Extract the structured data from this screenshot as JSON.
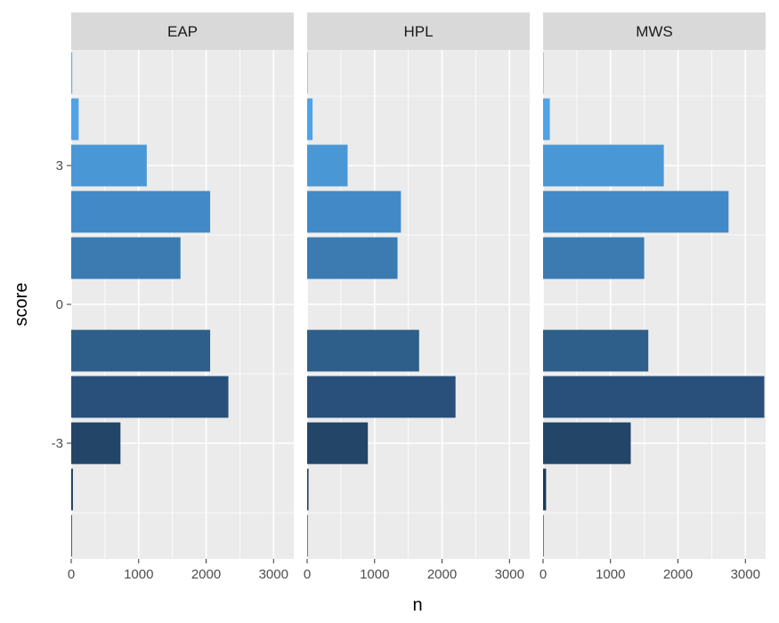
{
  "chart_data": {
    "type": "bar",
    "orientation": "horizontal",
    "facet_by": "author",
    "xlabel": "n",
    "ylabel": "score",
    "xlim": [
      0,
      3300
    ],
    "ylim": [
      -5.5,
      5.5
    ],
    "x_ticks": [
      0,
      1000,
      2000,
      3000
    ],
    "x_tick_labels": [
      "0",
      "1000",
      "2000",
      "3000"
    ],
    "y_ticks": [
      -3,
      0,
      3
    ],
    "y_tick_labels": [
      "-3",
      "0",
      "3"
    ],
    "grid": true,
    "legend": "none",
    "score_categories": [
      5,
      4,
      3,
      2,
      1,
      0,
      -1,
      -2,
      -3,
      -4,
      -5
    ],
    "fill_colors": {
      "5": "#56B1F7",
      "4": "#4FA3E6",
      "3": "#4A97D6",
      "2": "#428AC7",
      "1": "#3B7BB2",
      "-1": "#2E5F8A",
      "-2": "#28507A",
      "-3": "#234568",
      "-4": "#1E3A5A",
      "-5": "#132B43"
    },
    "facets": [
      {
        "name": "EAP",
        "scores": [
          5,
          4,
          3,
          2,
          1,
          -1,
          -2,
          -3,
          -4,
          -5
        ],
        "values": [
          15,
          110,
          1120,
          2060,
          1620,
          2060,
          2330,
          730,
          25,
          10
        ]
      },
      {
        "name": "HPL",
        "scores": [
          5,
          4,
          3,
          2,
          1,
          -1,
          -2,
          -3,
          -4,
          -5
        ],
        "values": [
          5,
          80,
          600,
          1390,
          1340,
          1660,
          2200,
          900,
          20,
          5
        ]
      },
      {
        "name": "MWS",
        "scores": [
          5,
          4,
          3,
          2,
          1,
          -1,
          -2,
          -3,
          -4,
          -5
        ],
        "values": [
          5,
          100,
          1790,
          2750,
          1500,
          1560,
          3280,
          1300,
          45,
          5
        ]
      }
    ]
  },
  "colors": {
    "panel_background": "#EBEBEB",
    "grid_major": "#FFFFFF",
    "strip_background": "#D9D9D9",
    "tick_color": "#333333",
    "tick_label": "#4D4D4D"
  }
}
